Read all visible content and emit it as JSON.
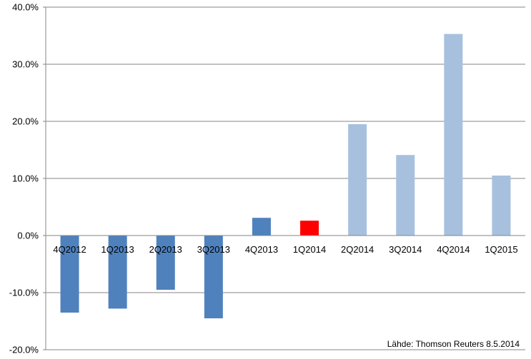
{
  "chart_data": {
    "type": "bar",
    "title": "",
    "xlabel": "",
    "ylabel": "",
    "categories": [
      "4Q2012",
      "1Q2013",
      "2Q2013",
      "3Q2013",
      "4Q2013",
      "1Q2014",
      "2Q2014",
      "3Q2014",
      "4Q2014",
      "1Q2015"
    ],
    "values": [
      -13.5,
      -12.8,
      -9.5,
      -14.5,
      3.1,
      2.6,
      19.5,
      14.1,
      35.3,
      10.5
    ],
    "bar_colors": [
      "#4f81bd",
      "#4f81bd",
      "#4f81bd",
      "#4f81bd",
      "#4f81bd",
      "#ff0000",
      "#a7c0de",
      "#a7c0de",
      "#a7c0de",
      "#a7c0de"
    ],
    "ylim": [
      -20,
      40
    ],
    "y_ticks": [
      40,
      30,
      20,
      10,
      0,
      -10,
      -20
    ],
    "y_tick_labels": [
      "40.0%",
      "30.0%",
      "20.0%",
      "10.0%",
      "0.0%",
      "-10.0%",
      "-20.0%"
    ],
    "grid": true,
    "legend": "none",
    "source": "Lähde: Thomson Reuters 8.5.2014"
  }
}
